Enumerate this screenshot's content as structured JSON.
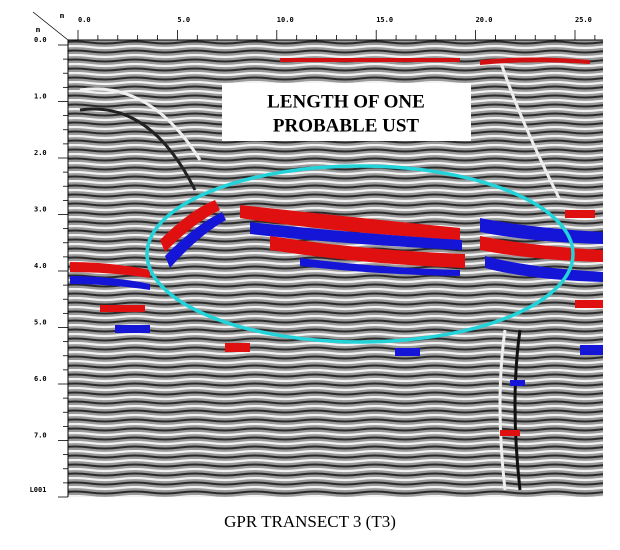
{
  "header": {
    "x_unit": "m",
    "y_unit": "m"
  },
  "x_axis": {
    "labels": [
      "0.0",
      "5.0",
      "10.0",
      "15.0",
      "20.0",
      "25.0"
    ]
  },
  "y_axis": {
    "labels": [
      "0.0",
      "1.0",
      "2.0",
      "3.0",
      "4.0",
      "5.0",
      "6.0",
      "7.0"
    ]
  },
  "profile_label": "L001",
  "annotation": {
    "lines": [
      "LENGTH OF ONE",
      "PROBABLE UST"
    ]
  },
  "caption": "GPR TRANSECT 3 (T3)"
}
